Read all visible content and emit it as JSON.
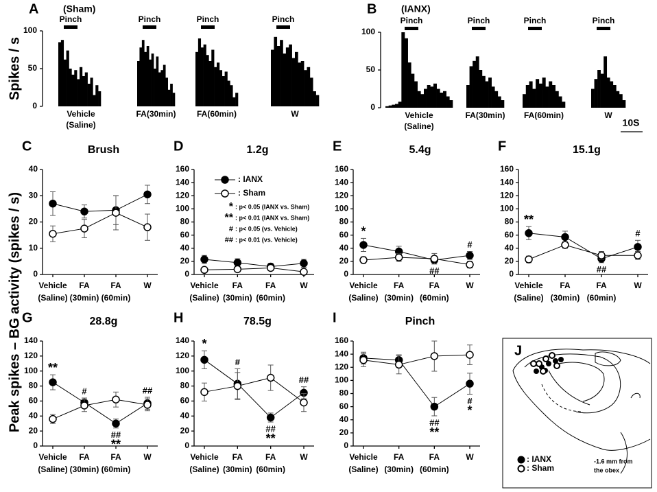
{
  "shared_y_label": "Peak spikes – BG activity (spikes / s)",
  "chart_data": [
    {
      "type": "histogram",
      "panel": "A",
      "group": "(Sham)",
      "y_label": "Spikes / s",
      "stimulus": "Pinch",
      "ylim": [
        0,
        100
      ],
      "yticks": [
        0,
        50,
        100
      ],
      "subplots": [
        {
          "label_lines": [
            "Vehicle",
            "(Saline)"
          ],
          "values": [
            85,
            88,
            62,
            74,
            50,
            42,
            48,
            36,
            52,
            40,
            45,
            30,
            38,
            15,
            28,
            20
          ]
        },
        {
          "label_lines": [
            "FA(30min)"
          ],
          "values": [
            60,
            78,
            88,
            72,
            80,
            62,
            70,
            50,
            66,
            45,
            48,
            55,
            38,
            22,
            30,
            18
          ]
        },
        {
          "label_lines": [
            "FA(60min)"
          ],
          "values": [
            72,
            90,
            78,
            82,
            68,
            60,
            75,
            52,
            58,
            48,
            40,
            46,
            34,
            28,
            12,
            18
          ]
        },
        {
          "label_lines": [
            "W"
          ],
          "values": [
            75,
            92,
            80,
            88,
            70,
            78,
            82,
            64,
            72,
            58,
            60,
            48,
            52,
            38,
            20,
            15
          ]
        }
      ]
    },
    {
      "type": "histogram",
      "panel": "B",
      "group": "(IANX)",
      "stimulus": "Pinch",
      "scale_bar": "10S",
      "ylim": [
        0,
        100
      ],
      "yticks": [
        0,
        50,
        100
      ],
      "subplots": [
        {
          "label_lines": [
            "Vehicle",
            "(Saline)"
          ],
          "values": [
            2,
            3,
            4,
            5,
            8,
            100,
            92,
            60,
            45,
            35,
            22,
            18,
            25,
            30,
            28,
            32,
            25,
            20,
            22,
            15,
            10
          ]
        },
        {
          "label_lines": [
            "FA(30min)"
          ],
          "values": [
            30,
            55,
            62,
            68,
            50,
            42,
            35,
            40,
            28,
            22,
            15,
            10
          ]
        },
        {
          "label_lines": [
            "FA(60min)"
          ],
          "values": [
            18,
            30,
            35,
            25,
            38,
            32,
            40,
            28,
            35,
            30,
            22,
            15,
            8
          ]
        },
        {
          "label_lines": [
            "W"
          ],
          "values": [
            25,
            38,
            50,
            45,
            68,
            40,
            35,
            30,
            22,
            18,
            10
          ]
        }
      ]
    },
    {
      "type": "line",
      "panel": "C",
      "title": "Brush",
      "ylim": [
        0,
        40
      ],
      "yticks": [
        0,
        10,
        20,
        30,
        40
      ],
      "categories": [
        [
          "Vehicle",
          "(Saline)"
        ],
        [
          "FA",
          "(30min)"
        ],
        [
          "FA",
          "(60min)"
        ],
        [
          "W"
        ]
      ],
      "series": [
        {
          "name": ": IANX",
          "fill": "#000",
          "values": [
            27,
            24,
            24.5,
            30.5
          ],
          "errors": [
            4.5,
            2.5,
            5.5,
            3.5
          ]
        },
        {
          "name": ": Sham",
          "fill": "#fff",
          "values": [
            15.5,
            17.5,
            23.5,
            18
          ],
          "errors": [
            3,
            3.5,
            6.5,
            5
          ]
        }
      ],
      "annotations": []
    },
    {
      "type": "line",
      "panel": "D",
      "title": "1.2g",
      "ylim": [
        0,
        160
      ],
      "yticks": [
        0,
        20,
        40,
        60,
        80,
        100,
        120,
        140,
        160
      ],
      "categories": [
        [
          "Vehicle",
          "(Saline)"
        ],
        [
          "FA",
          "(30min)"
        ],
        [
          "FA",
          "(60min)"
        ],
        [
          "W"
        ]
      ],
      "legend": true,
      "notes": [
        {
          "symbol": "*",
          "text": ": p< 0.05 (IANX vs. Sham)"
        },
        {
          "symbol": "**",
          "text": ": p< 0.01 (IANX vs. Sham)"
        },
        {
          "symbol": "#",
          "text": ": p< 0.05 (vs. Vehicle)"
        },
        {
          "symbol": "##",
          "text": ": p< 0.01 (vs. Vehicle)"
        }
      ],
      "series": [
        {
          "name": ": IANX",
          "fill": "#000",
          "values": [
            23,
            18,
            12,
            17
          ],
          "errors": [
            6,
            6,
            5,
            6
          ]
        },
        {
          "name": ": Sham",
          "fill": "#fff",
          "values": [
            7,
            8,
            10,
            4
          ],
          "errors": [
            3,
            4,
            4,
            3
          ]
        }
      ],
      "annotations": []
    },
    {
      "type": "line",
      "panel": "E",
      "title": "5.4g",
      "ylim": [
        0,
        160
      ],
      "yticks": [
        0,
        20,
        40,
        60,
        80,
        100,
        120,
        140,
        160
      ],
      "categories": [
        [
          "Vehicle",
          "(Saline)"
        ],
        [
          "FA",
          "(30min)"
        ],
        [
          "FA",
          "(60min)"
        ],
        [
          "W"
        ]
      ],
      "series": [
        {
          "name": ": IANX",
          "fill": "#000",
          "values": [
            45,
            35,
            22,
            29
          ],
          "errors": [
            10,
            8,
            6,
            6
          ]
        },
        {
          "name": ": Sham",
          "fill": "#fff",
          "values": [
            22,
            26,
            24,
            15
          ],
          "errors": [
            5,
            6,
            8,
            5
          ]
        }
      ],
      "annotations": [
        {
          "index": 0,
          "side": "above",
          "lines": [
            "*"
          ]
        },
        {
          "index": 2,
          "side": "below",
          "lines": [
            "##"
          ]
        },
        {
          "index": 3,
          "side": "above",
          "lines": [
            "#"
          ]
        }
      ]
    },
    {
      "type": "line",
      "panel": "F",
      "title": "15.1g",
      "ylim": [
        0,
        160
      ],
      "yticks": [
        0,
        20,
        40,
        60,
        80,
        100,
        120,
        140,
        160
      ],
      "categories": [
        [
          "Vehicle",
          "(Saline)"
        ],
        [
          "FA",
          "(30min)"
        ],
        [
          "FA",
          "(60min)"
        ],
        [
          "W"
        ]
      ],
      "series": [
        {
          "name": ": IANX",
          "fill": "#000",
          "values": [
            63,
            57,
            24,
            42
          ],
          "errors": [
            10,
            9,
            6,
            10
          ]
        },
        {
          "name": ": Sham",
          "fill": "#fff",
          "values": [
            23,
            45,
            29,
            29
          ],
          "errors": [
            5,
            5,
            6,
            6
          ]
        }
      ],
      "annotations": [
        {
          "index": 0,
          "side": "above",
          "lines": [
            "**"
          ]
        },
        {
          "index": 2,
          "side": "below",
          "lines": [
            "##"
          ]
        },
        {
          "index": 3,
          "side": "above",
          "lines": [
            "#"
          ]
        }
      ]
    },
    {
      "type": "line",
      "panel": "G",
      "title": "28.8g",
      "ylim": [
        0,
        140
      ],
      "yticks": [
        0,
        20,
        40,
        60,
        80,
        100,
        120,
        140
      ],
      "categories": [
        [
          "Vehicle",
          "(Saline)"
        ],
        [
          "FA",
          "(30min)"
        ],
        [
          "FA",
          "(60min)"
        ],
        [
          "W"
        ]
      ],
      "series": [
        {
          "name": ": IANX",
          "fill": "#000",
          "values": [
            85,
            58,
            30,
            57
          ],
          "errors": [
            10,
            6,
            6,
            8
          ]
        },
        {
          "name": ": Sham",
          "fill": "#fff",
          "values": [
            36,
            54,
            62,
            55
          ],
          "errors": [
            6,
            8,
            10,
            8
          ]
        }
      ],
      "annotations": [
        {
          "index": 0,
          "side": "above",
          "lines": [
            "**"
          ]
        },
        {
          "index": 1,
          "side": "above",
          "lines": [
            "#"
          ]
        },
        {
          "index": 2,
          "side": "below",
          "lines": [
            "##",
            "**"
          ]
        },
        {
          "index": 3,
          "side": "above",
          "lines": [
            "##"
          ]
        }
      ]
    },
    {
      "type": "line",
      "panel": "H",
      "title": "78.5g",
      "ylim": [
        0,
        140
      ],
      "yticks": [
        0,
        20,
        40,
        60,
        80,
        100,
        120,
        140
      ],
      "categories": [
        [
          "Vehicle",
          "(Saline)"
        ],
        [
          "FA",
          "(30min)"
        ],
        [
          "FA",
          "(60min)"
        ],
        [
          "W"
        ]
      ],
      "series": [
        {
          "name": ": IANX",
          "fill": "#000",
          "values": [
            115,
            83,
            38,
            71
          ],
          "errors": [
            12,
            20,
            6,
            8
          ]
        },
        {
          "name": ": Sham",
          "fill": "#fff",
          "values": [
            72,
            80,
            91,
            58
          ],
          "errors": [
            12,
            18,
            17,
            12
          ]
        }
      ],
      "annotations": [
        {
          "index": 0,
          "side": "above",
          "lines": [
            "*"
          ]
        },
        {
          "index": 1,
          "side": "above",
          "lines": [
            "#"
          ]
        },
        {
          "index": 2,
          "side": "below",
          "lines": [
            "##",
            "**"
          ]
        },
        {
          "index": 3,
          "side": "above",
          "lines": [
            "##"
          ]
        }
      ]
    },
    {
      "type": "line",
      "panel": "I",
      "title": "Pinch",
      "ylim": [
        0,
        160
      ],
      "yticks": [
        0,
        20,
        40,
        60,
        80,
        100,
        120,
        140,
        160
      ],
      "categories": [
        [
          "Vehicle",
          "(Saline)"
        ],
        [
          "FA",
          "(30min)"
        ],
        [
          "FA",
          "(60min)"
        ],
        [
          "W"
        ]
      ],
      "series": [
        {
          "name": ": IANX",
          "fill": "#000",
          "values": [
            134,
            131,
            60,
            95
          ],
          "errors": [
            9,
            8,
            14,
            16
          ]
        },
        {
          "name": ": Sham",
          "fill": "#fff",
          "values": [
            131,
            124,
            137,
            139
          ],
          "errors": [
            10,
            14,
            23,
            15
          ]
        }
      ],
      "annotations": [
        {
          "index": 2,
          "side": "below",
          "lines": [
            "##",
            "**"
          ]
        },
        {
          "index": 3,
          "side": "below",
          "lines": [
            "#",
            "*"
          ]
        }
      ]
    },
    {
      "type": "diagram",
      "panel": "J",
      "legend": [
        {
          "fill": "#000",
          "label": ": IANX"
        },
        {
          "fill": "#fff",
          "label": ": Sham"
        }
      ],
      "note_lines": [
        "-1.6 mm from",
        "the obex"
      ]
    }
  ]
}
